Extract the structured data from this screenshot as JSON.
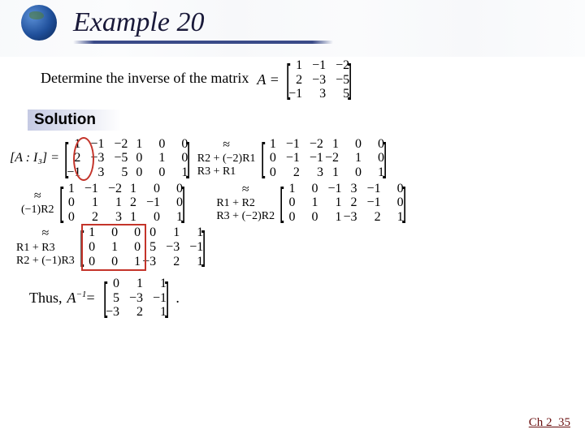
{
  "title": "Example 20",
  "prompt": "Determine the inverse of the matrix",
  "A_label": "A =",
  "A": [
    [
      "1",
      "−1",
      "−2"
    ],
    [
      "2",
      "−3",
      "−5"
    ],
    [
      "−1",
      "3",
      "5"
    ]
  ],
  "solution_label": "Solution",
  "step1_lhs": "[A : I₃] =",
  "aug1_left": [
    [
      "1",
      "−1",
      "−2"
    ],
    [
      "2",
      "−3",
      "−5"
    ],
    [
      "−1",
      "3",
      "5"
    ]
  ],
  "aug1_right": [
    [
      "1",
      "0",
      "0"
    ],
    [
      "0",
      "1",
      "0"
    ],
    [
      "0",
      "0",
      "1"
    ]
  ],
  "step1_ops": [
    "≈",
    "R2 + (−2)R1",
    "R3 + R1"
  ],
  "aug2_left": [
    [
      "1",
      "−1",
      "−2"
    ],
    [
      "0",
      "−1",
      "−1"
    ],
    [
      "0",
      "2",
      "3"
    ]
  ],
  "aug2_right": [
    [
      "1",
      "0",
      "0"
    ],
    [
      "−2",
      "1",
      "0"
    ],
    [
      "1",
      "0",
      "1"
    ]
  ],
  "step2_ops": [
    "≈",
    "(−1)R2"
  ],
  "aug3_left": [
    [
      "1",
      "−1",
      "−2"
    ],
    [
      "0",
      "1",
      "1"
    ],
    [
      "0",
      "2",
      "3"
    ]
  ],
  "aug3_right": [
    [
      "1",
      "0",
      "0"
    ],
    [
      "2",
      "−1",
      "0"
    ],
    [
      "1",
      "0",
      "1"
    ]
  ],
  "step3_ops": [
    "≈",
    "R1 + R2",
    "R3 + (−2)R2"
  ],
  "aug4_left": [
    [
      "1",
      "0",
      "−1"
    ],
    [
      "0",
      "1",
      "1"
    ],
    [
      "0",
      "0",
      "1"
    ]
  ],
  "aug4_right": [
    [
      "3",
      "−1",
      "0"
    ],
    [
      "2",
      "−1",
      "0"
    ],
    [
      "−3",
      "2",
      "1"
    ]
  ],
  "step4_ops": [
    "≈",
    "R1 + R3",
    "R2 + (−1)R3"
  ],
  "aug5_left": [
    [
      "1",
      "0",
      "0"
    ],
    [
      "0",
      "1",
      "0"
    ],
    [
      "0",
      "0",
      "1"
    ]
  ],
  "aug5_right": [
    [
      "0",
      "1",
      "1"
    ],
    [
      "5",
      "−3",
      "−1"
    ],
    [
      "−3",
      "2",
      "1"
    ]
  ],
  "final_label_pre": "Thus, ",
  "final_label": "A",
  "final_label_sup": "−1",
  "final_eq": " =",
  "Ainv": [
    [
      "0",
      "1",
      "1"
    ],
    [
      "5",
      "−3",
      "−1"
    ],
    [
      "−3",
      "2",
      "1"
    ]
  ],
  "period": ".",
  "footer": "Ch 2_35",
  "colors": {
    "title": "#1a1a3a",
    "highlight": "#c4342a",
    "text": "#000000"
  }
}
